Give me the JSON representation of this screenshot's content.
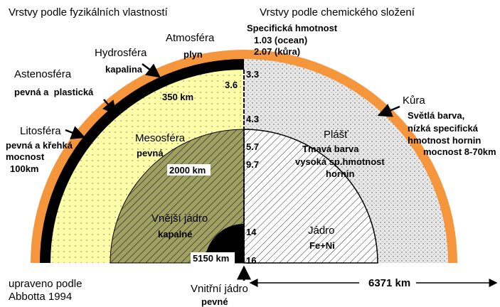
{
  "headers": {
    "physical": "Vrstvy podle fyzikálních vlastností",
    "chemical": "Vrstvy podle chemického složení"
  },
  "density": {
    "title": "Specifická hmotnost",
    "ocean": "1.03 (ocean)",
    "crust": "2.07 (kůra)",
    "marks": [
      "3.3",
      "3.6",
      "4.3",
      "5.7",
      "9.7",
      "14",
      "16"
    ]
  },
  "physical_layers": {
    "atmosphere": {
      "name": "Atmosféra",
      "state": "plyn"
    },
    "hydrosphere": {
      "name": "Hydrosféra",
      "state": "kapalina"
    },
    "asthenosphere": {
      "name": "Astenosféra",
      "state": "pevná a  plastická"
    },
    "lithosphere": {
      "name": "Litosféra",
      "state": "pevná a křehká",
      "thickness_label": "mocnost",
      "thickness": "100km"
    },
    "mesosphere": {
      "name": "Mesosféra",
      "state": "pevná"
    },
    "outer_core": {
      "name": "Vnější jádro",
      "state": "kapalné"
    },
    "inner_core": {
      "name": "Vnitřní jádro",
      "state": "pevné"
    }
  },
  "chemical_layers": {
    "crust": {
      "name": "Kůra",
      "lines": [
        "Světlá barva,",
        "nízká specifická",
        "hmotnost hornin",
        "mocnost 8-70km"
      ]
    },
    "mantle": {
      "name": "Plášť",
      "lines": [
        "Tmavá barva",
        "vysoká sp.hmotnost",
        "hornin"
      ]
    },
    "core": {
      "name": "Jádro",
      "composition": "Fe+Ni"
    }
  },
  "depths": [
    "350 km",
    "2000 km",
    "5150 km"
  ],
  "radius": "6371 km",
  "credit": [
    "upraveno podle",
    "Abbotta 1994"
  ]
}
